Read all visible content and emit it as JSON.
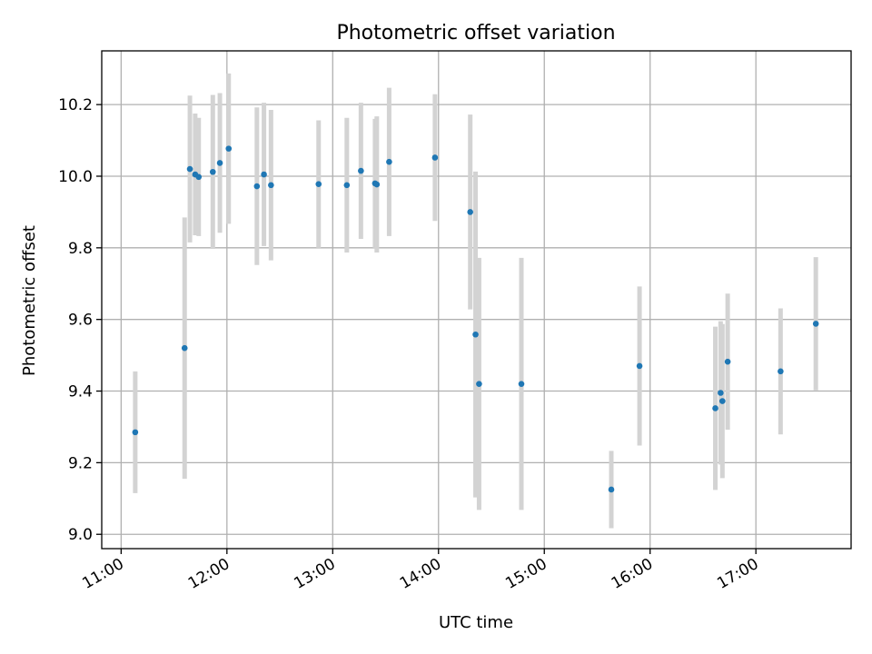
{
  "chart_data": {
    "type": "scatter",
    "title": "Photometric offset variation",
    "xlabel": "UTC time",
    "ylabel": "Photometric offset",
    "grid": true,
    "xlim": [
      "10:49",
      "17:54"
    ],
    "ylim": [
      8.96,
      10.35
    ],
    "x_ticks": [
      "11:00",
      "12:00",
      "13:00",
      "14:00",
      "15:00",
      "16:00",
      "17:00"
    ],
    "y_ticks": [
      9.0,
      9.2,
      9.4,
      9.6,
      9.8,
      10.0,
      10.2
    ],
    "series": [
      {
        "errorbar_color": "#d3d3d3",
        "marker_color": "#1f77b4",
        "points": [
          {
            "x": "11:08",
            "y": 9.285,
            "err": 0.17
          },
          {
            "x": "11:36",
            "y": 9.52,
            "err": 0.365
          },
          {
            "x": "11:39",
            "y": 10.02,
            "err": 0.205
          },
          {
            "x": "11:42",
            "y": 10.005,
            "err": 0.17
          },
          {
            "x": "11:44",
            "y": 9.998,
            "err": 0.165
          },
          {
            "x": "11:52",
            "y": 10.012,
            "err": 0.215
          },
          {
            "x": "11:56",
            "y": 10.037,
            "err": 0.195
          },
          {
            "x": "12:01",
            "y": 10.077,
            "err": 0.21
          },
          {
            "x": "12:17",
            "y": 9.972,
            "err": 0.22
          },
          {
            "x": "12:21",
            "y": 10.005,
            "err": 0.2
          },
          {
            "x": "12:25",
            "y": 9.975,
            "err": 0.21
          },
          {
            "x": "12:52",
            "y": 9.978,
            "err": 0.178
          },
          {
            "x": "13:08",
            "y": 9.975,
            "err": 0.188
          },
          {
            "x": "13:16",
            "y": 10.015,
            "err": 0.19
          },
          {
            "x": "13:24",
            "y": 9.98,
            "err": 0.18
          },
          {
            "x": "13:25",
            "y": 9.977,
            "err": 0.19
          },
          {
            "x": "13:32",
            "y": 10.04,
            "err": 0.207
          },
          {
            "x": "13:58",
            "y": 10.052,
            "err": 0.177
          },
          {
            "x": "14:18",
            "y": 9.9,
            "err": 0.272
          },
          {
            "x": "14:21",
            "y": 9.558,
            "err": 0.455
          },
          {
            "x": "14:23",
            "y": 9.42,
            "err": 0.352
          },
          {
            "x": "14:47",
            "y": 9.42,
            "err": 0.352
          },
          {
            "x": "15:38",
            "y": 9.125,
            "err": 0.108
          },
          {
            "x": "15:54",
            "y": 9.47,
            "err": 0.222
          },
          {
            "x": "16:37",
            "y": 9.352,
            "err": 0.228
          },
          {
            "x": "16:40",
            "y": 9.395,
            "err": 0.2
          },
          {
            "x": "16:41",
            "y": 9.372,
            "err": 0.215
          },
          {
            "x": "16:44",
            "y": 9.482,
            "err": 0.19
          },
          {
            "x": "17:14",
            "y": 9.455,
            "err": 0.176
          },
          {
            "x": "17:34",
            "y": 9.588,
            "err": 0.186
          }
        ]
      }
    ]
  }
}
